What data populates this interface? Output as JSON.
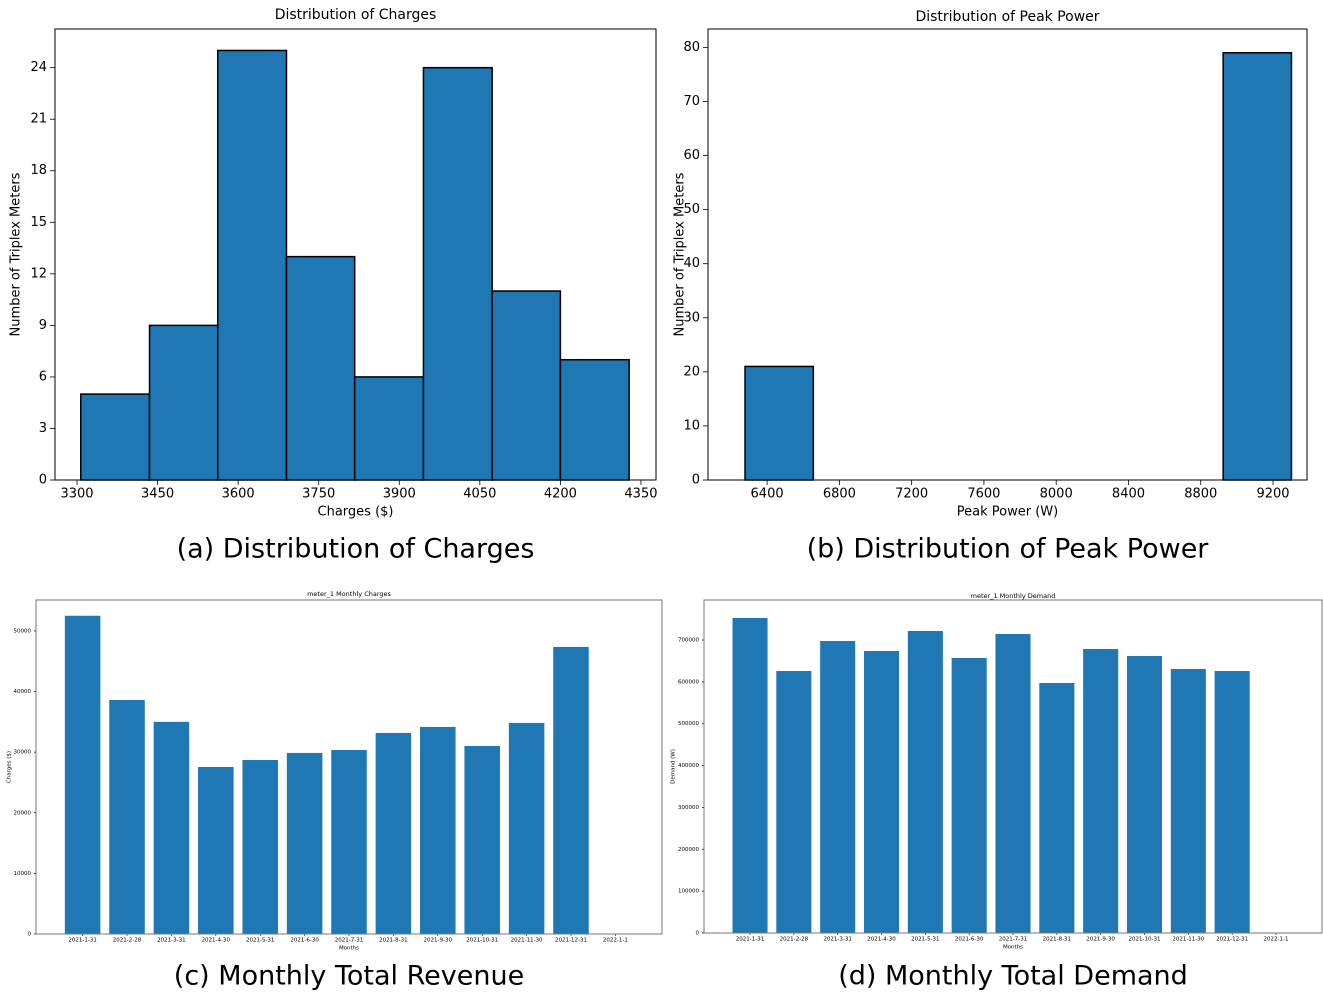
{
  "chart_data": [
    {
      "type": "histogram",
      "title": "Distribution of Charges",
      "xlabel": "Charges ($)",
      "ylabel": "Number of Triplex Meters",
      "caption": "(a) Distribution of Charges",
      "bins": [
        3307,
        3435,
        3562,
        3690,
        3817,
        3945,
        4073,
        4200,
        4328
      ],
      "values": [
        5,
        9,
        25,
        13,
        6,
        24,
        11,
        7
      ],
      "color": "#1f77b4",
      "edgecolor": "#000000",
      "xlim": [
        3259,
        4378
      ],
      "xticks": [
        3300,
        3450,
        3600,
        3750,
        3900,
        4050,
        4200,
        4350
      ],
      "ylim": [
        0,
        26.25
      ],
      "yticks": [
        0,
        3,
        6,
        9,
        12,
        15,
        18,
        21,
        24
      ]
    },
    {
      "type": "histogram",
      "title": "Distribution of Peak Power",
      "xlabel": "Peak Power (W)",
      "ylabel": "Number of Triplex Meters",
      "caption": "(b) Distribution of Peak Power",
      "bins": [
        6278,
        6656,
        7034,
        7412,
        7790,
        8168,
        8546,
        8924,
        9302
      ],
      "values": [
        21,
        0,
        0,
        0,
        0,
        0,
        0,
        79
      ],
      "color": "#1f77b4",
      "edgecolor": "#000000",
      "xlim": [
        6073,
        9388
      ],
      "xticks": [
        6400,
        6800,
        7200,
        7600,
        8000,
        8400,
        8800,
        9200
      ],
      "ylim": [
        0,
        83.4
      ],
      "yticks": [
        0,
        10,
        20,
        30,
        40,
        50,
        60,
        70,
        80
      ]
    },
    {
      "type": "bar",
      "title": "meter_1 Monthly Charges",
      "xlabel": "Months",
      "ylabel": "Charges ($)",
      "caption": "(c) Monthly Total Revenue",
      "categories": [
        "2021-1-31",
        "2021-2-28",
        "2021-3-31",
        "2021-4-30",
        "2021-5-31",
        "2021-6-30",
        "2021-7-31",
        "2021-8-31",
        "2021-9-30",
        "2021-10-31",
        "2021-11-30",
        "2021-12-31",
        "2022-1-1"
      ],
      "values": [
        52500,
        38600,
        35000,
        27550,
        28700,
        29870,
        30360,
        33170,
        34160,
        31020,
        34820,
        47360,
        0
      ],
      "color": "#1f77b4",
      "ylim": [
        0,
        55100
      ],
      "yticks": [
        0,
        10000,
        20000,
        30000,
        40000,
        50000
      ]
    },
    {
      "type": "bar",
      "title": "meter_1 Monthly Demand",
      "xlabel": "Months",
      "ylabel": "Demand (W)",
      "caption": "(d) Monthly Total Demand",
      "categories": [
        "2021-1-31",
        "2021-2-28",
        "2021-3-31",
        "2021-4-30",
        "2021-5-31",
        "2021-6-30",
        "2021-7-31",
        "2021-8-31",
        "2021-9-30",
        "2021-10-31",
        "2021-11-30",
        "2021-12-31",
        "2022-1-1"
      ],
      "values": [
        752600,
        626000,
        697600,
        673700,
        721500,
        657000,
        714300,
        597300,
        678500,
        661800,
        630700,
        626000,
        0
      ],
      "color": "#1f77b4",
      "ylim": [
        0,
        795600
      ],
      "yticks": [
        0,
        100000,
        200000,
        300000,
        400000,
        500000,
        600000,
        700000
      ]
    }
  ]
}
